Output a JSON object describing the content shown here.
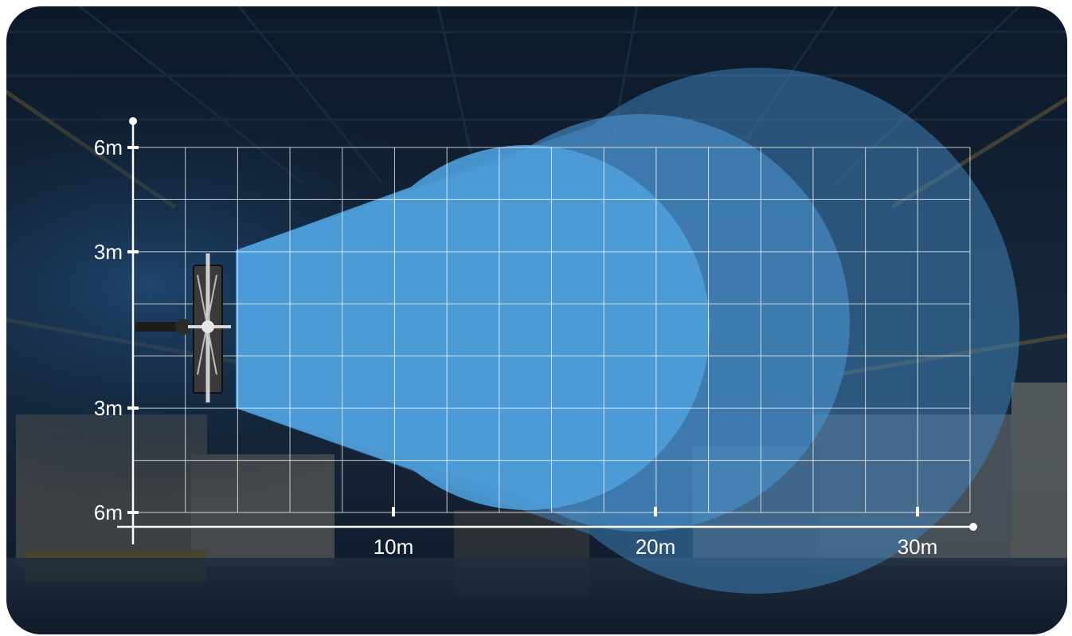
{
  "diagram": {
    "y_axis": {
      "tick_labels": [
        "6m",
        "3m",
        "3m",
        "6m"
      ]
    },
    "x_axis": {
      "tick_labels": [
        "10m",
        "20m",
        "30m"
      ]
    },
    "beams": [
      {
        "id": "beam-near",
        "color": "#4e9fdc"
      },
      {
        "id": "beam-mid",
        "color": "#4b93cf"
      },
      {
        "id": "beam-far",
        "color": "#3f7fb6"
      }
    ],
    "colors": {
      "grid_line": "#ffffff",
      "axis": "#ffffff",
      "background_dark": "#0d1826",
      "background_accent": "#2a5f96"
    },
    "icons": [
      "radar-sensor-icon"
    ]
  }
}
